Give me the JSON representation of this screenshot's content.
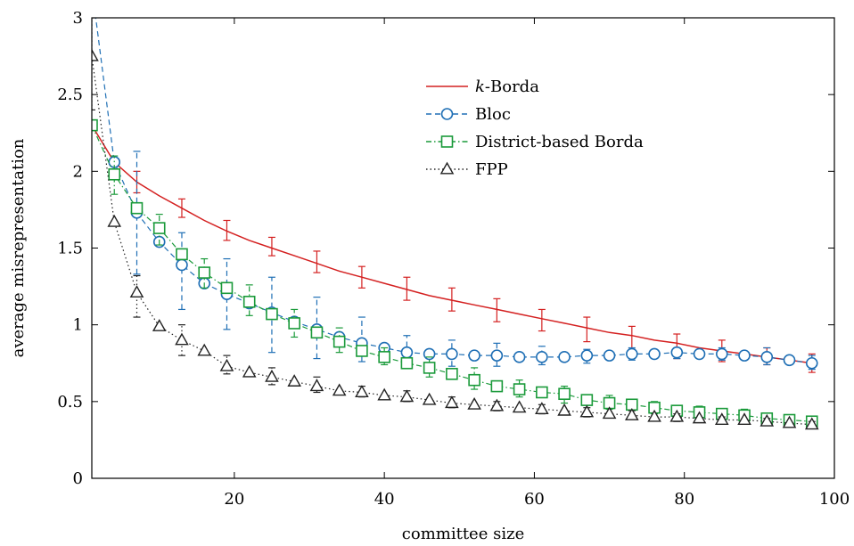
{
  "chart_data": {
    "type": "line",
    "title": "",
    "xlabel": "committee size",
    "ylabel": "average misrepresentation",
    "xlim": [
      1,
      100
    ],
    "ylim": [
      0,
      3
    ],
    "xticks": [
      20,
      40,
      60,
      80,
      100
    ],
    "yticks": [
      0,
      0.5,
      1,
      1.5,
      2,
      2.5,
      3
    ],
    "legend_position": "top-right (inside)",
    "grid": false,
    "series": [
      {
        "name": "k-Borda",
        "name_prefix": "k",
        "name_suffix": "-Borda",
        "color": "#d42020",
        "marker": "none",
        "dash": "solid",
        "x": [
          1,
          4,
          7,
          10,
          13,
          16,
          19,
          22,
          25,
          28,
          31,
          34,
          37,
          40,
          43,
          46,
          49,
          52,
          55,
          58,
          61,
          64,
          67,
          70,
          73,
          76,
          79,
          82,
          85,
          88,
          91,
          94,
          97
        ],
        "y": [
          2.3,
          2.06,
          1.93,
          1.84,
          1.76,
          1.68,
          1.61,
          1.55,
          1.5,
          1.45,
          1.4,
          1.35,
          1.31,
          1.27,
          1.23,
          1.19,
          1.16,
          1.13,
          1.1,
          1.07,
          1.04,
          1.01,
          0.98,
          0.95,
          0.93,
          0.9,
          0.88,
          0.85,
          0.83,
          0.81,
          0.79,
          0.77,
          0.75
        ],
        "error_x": [
          7,
          13,
          19,
          25,
          31,
          37,
          43,
          49,
          55,
          61,
          67,
          73,
          79,
          85,
          91,
          97
        ],
        "error_low": [
          1.86,
          1.7,
          1.55,
          1.45,
          1.34,
          1.24,
          1.16,
          1.09,
          1.02,
          0.96,
          0.89,
          0.84,
          0.78,
          0.76,
          0.74,
          0.69
        ],
        "error_high": [
          2.0,
          1.82,
          1.68,
          1.57,
          1.48,
          1.38,
          1.31,
          1.24,
          1.17,
          1.1,
          1.05,
          0.99,
          0.94,
          0.9,
          0.85,
          0.81
        ]
      },
      {
        "name": "Bloc",
        "color": "#1f6fb5",
        "marker": "circle",
        "dash": "dashed",
        "x": [
          1,
          4,
          7,
          10,
          13,
          16,
          19,
          22,
          25,
          28,
          31,
          34,
          37,
          40,
          43,
          46,
          49,
          52,
          55,
          58,
          61,
          64,
          67,
          70,
          73,
          76,
          79,
          82,
          85,
          88,
          91,
          94,
          97
        ],
        "y": [
          3.2,
          2.06,
          1.73,
          1.54,
          1.39,
          1.27,
          1.2,
          1.14,
          1.08,
          1.02,
          0.97,
          0.92,
          0.88,
          0.85,
          0.82,
          0.81,
          0.81,
          0.8,
          0.8,
          0.79,
          0.79,
          0.79,
          0.8,
          0.8,
          0.81,
          0.81,
          0.82,
          0.81,
          0.81,
          0.8,
          0.79,
          0.77,
          0.75
        ],
        "error_x": [
          7,
          13,
          19,
          25,
          31,
          37,
          43,
          49,
          55,
          61,
          67,
          73,
          79,
          85,
          91,
          97
        ],
        "error_low": [
          1.33,
          1.1,
          0.97,
          0.82,
          0.78,
          0.76,
          0.74,
          0.73,
          0.73,
          0.74,
          0.75,
          0.77,
          0.78,
          0.77,
          0.74,
          0.71
        ],
        "error_high": [
          2.13,
          1.6,
          1.43,
          1.31,
          1.18,
          1.05,
          0.93,
          0.9,
          0.88,
          0.86,
          0.84,
          0.85,
          0.85,
          0.85,
          0.85,
          0.8
        ]
      },
      {
        "name": "District-based Borda",
        "color": "#1a9a3a",
        "marker": "square",
        "dash": "dash-dot",
        "x": [
          1,
          4,
          7,
          10,
          13,
          16,
          19,
          22,
          25,
          28,
          31,
          34,
          37,
          40,
          43,
          46,
          49,
          52,
          55,
          58,
          61,
          64,
          67,
          70,
          73,
          76,
          79,
          82,
          85,
          88,
          91,
          94,
          97
        ],
        "y": [
          2.3,
          1.98,
          1.76,
          1.63,
          1.46,
          1.34,
          1.24,
          1.15,
          1.07,
          1.01,
          0.95,
          0.89,
          0.83,
          0.79,
          0.75,
          0.72,
          0.68,
          0.64,
          0.6,
          0.58,
          0.56,
          0.55,
          0.51,
          0.49,
          0.48,
          0.46,
          0.44,
          0.43,
          0.42,
          0.41,
          0.39,
          0.38,
          0.37
        ],
        "error_x": [
          4,
          10,
          16,
          22,
          28,
          34,
          40,
          46,
          52,
          58,
          64,
          70,
          76,
          82,
          88,
          94
        ],
        "error_low": [
          1.85,
          1.52,
          1.24,
          1.06,
          0.92,
          0.82,
          0.74,
          0.66,
          0.58,
          0.53,
          0.49,
          0.45,
          0.42,
          0.4,
          0.38,
          0.36
        ],
        "error_high": [
          2.1,
          1.72,
          1.43,
          1.26,
          1.1,
          0.98,
          0.85,
          0.79,
          0.72,
          0.64,
          0.6,
          0.54,
          0.5,
          0.47,
          0.45,
          0.4
        ]
      },
      {
        "name": "FPP",
        "color": "#222222",
        "marker": "triangle",
        "dash": "dotted",
        "x": [
          1,
          4,
          7,
          10,
          13,
          16,
          19,
          22,
          25,
          28,
          31,
          34,
          37,
          40,
          43,
          46,
          49,
          52,
          55,
          58,
          61,
          64,
          67,
          70,
          73,
          76,
          79,
          82,
          85,
          88,
          91,
          94,
          97
        ],
        "y": [
          2.75,
          1.67,
          1.21,
          0.99,
          0.9,
          0.83,
          0.73,
          0.69,
          0.66,
          0.63,
          0.6,
          0.57,
          0.56,
          0.54,
          0.53,
          0.51,
          0.49,
          0.48,
          0.47,
          0.46,
          0.45,
          0.44,
          0.43,
          0.42,
          0.41,
          0.4,
          0.4,
          0.39,
          0.38,
          0.38,
          0.37,
          0.36,
          0.35
        ],
        "error_x": [
          1,
          7,
          13,
          19,
          25,
          31,
          37,
          43,
          49,
          55,
          61,
          67,
          73,
          79,
          85,
          91,
          97
        ],
        "error_low": [
          2.4,
          1.05,
          0.8,
          0.68,
          0.61,
          0.56,
          0.53,
          0.5,
          0.46,
          0.44,
          0.42,
          0.4,
          0.39,
          0.37,
          0.36,
          0.35,
          0.34
        ],
        "error_high": [
          3.0,
          1.32,
          1.0,
          0.8,
          0.72,
          0.66,
          0.6,
          0.57,
          0.53,
          0.5,
          0.48,
          0.46,
          0.44,
          0.42,
          0.4,
          0.39,
          0.37
        ]
      }
    ]
  }
}
